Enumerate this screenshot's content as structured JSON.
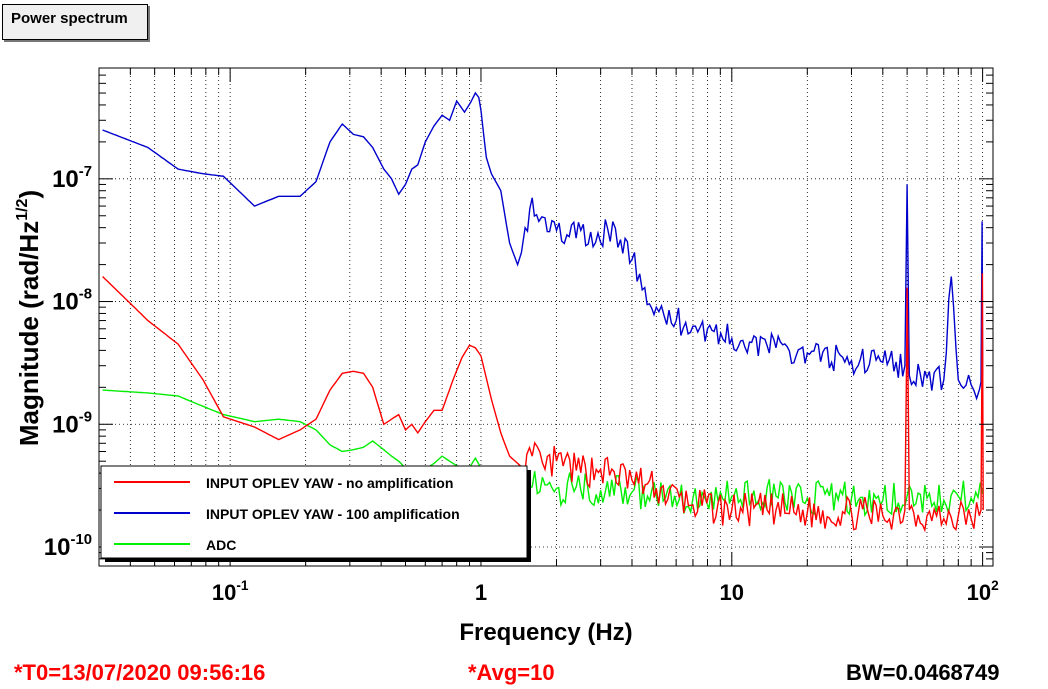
{
  "canvas_title": "Power spectrum",
  "footer": {
    "t0": "*T0=13/07/2020 09:56:16",
    "avg": "*Avg=10",
    "bw": "BW=0.0468749"
  },
  "colors": {
    "no_amp": "#ff0000",
    "amp100": "#0000cc",
    "adc": "#00ee00",
    "t0_text": "#ff0000",
    "avg_text": "#ff0000",
    "bw_text": "#000000"
  },
  "chart_data": {
    "type": "line",
    "title": "Power spectrum",
    "xlabel": "Frequency (Hz)",
    "ylabel": "Magnitude (rad/Hz^1/2)",
    "x_scale": "log",
    "y_scale": "log",
    "xlim": [
      0.03,
      110
    ],
    "ylim": [
      7e-11,
      8e-07
    ],
    "grid": true,
    "legend_position": "bottom-left",
    "x_ticks": [
      {
        "value": 0.1,
        "base": "10",
        "exp": "-1"
      },
      {
        "value": 1,
        "base": "1",
        "exp": ""
      },
      {
        "value": 10,
        "base": "10",
        "exp": ""
      },
      {
        "value": 100,
        "base": "10",
        "exp": "2"
      }
    ],
    "y_ticks": [
      {
        "value": 1e-10,
        "base": "10",
        "exp": "-10"
      },
      {
        "value": 1e-09,
        "base": "10",
        "exp": "-9"
      },
      {
        "value": 1e-08,
        "base": "10",
        "exp": "-8"
      },
      {
        "value": 1e-07,
        "base": "10",
        "exp": "-7"
      }
    ],
    "series": [
      {
        "name": "INPUT OPLEV YAW - no amplification",
        "color": "#ff0000",
        "x": [
          0.031,
          0.047,
          0.062,
          0.078,
          0.094,
          0.125,
          0.156,
          0.19,
          0.22,
          0.25,
          0.28,
          0.31,
          0.34,
          0.37,
          0.41,
          0.44,
          0.47,
          0.5,
          0.53,
          0.56,
          0.6,
          0.65,
          0.7,
          0.78,
          0.84,
          0.9,
          0.95,
          1.0,
          1.1,
          1.2,
          1.3,
          1.45,
          1.6,
          1.8,
          2.0,
          2.4,
          3.0,
          4.0,
          5.0,
          7.0,
          10.0,
          15.0,
          20.0,
          30.0,
          40.0,
          49.0,
          49.8,
          50.0,
          50.3,
          51.0,
          60.0,
          70.0,
          80.0,
          90.0,
          97.0,
          98.5,
          99.5,
          99.8,
          100.0,
          100.5
        ],
        "values": [
          1.6e-08,
          7e-09,
          4.5e-09,
          2.3e-09,
          1.15e-09,
          9.5e-10,
          7.5e-10,
          9e-10,
          1.1e-09,
          1.9e-09,
          2.6e-09,
          2.7e-09,
          2.6e-09,
          2e-09,
          1e-09,
          1.1e-09,
          1.2e-09,
          9e-10,
          1e-09,
          8.5e-10,
          1.05e-09,
          1.3e-09,
          1.3e-09,
          2.4e-09,
          3.5e-09,
          4.4e-09,
          4.2e-09,
          3.6e-09,
          1.6e-09,
          8.5e-10,
          5.5e-10,
          4.5e-10,
          5.5e-10,
          4.3e-10,
          5e-10,
          4.2e-10,
          4.3e-10,
          3.5e-10,
          3e-10,
          2.2e-10,
          2e-10,
          2e-10,
          1.9e-10,
          1.9e-10,
          1.8e-10,
          2e-10,
          4e-09,
          1.3e-08,
          4e-09,
          2e-10,
          1.8e-10,
          1.7e-10,
          1.8e-10,
          1.7e-10,
          1.8e-10,
          2e-10,
          5e-09,
          1.7e-08,
          5e-09,
          2e-10
        ]
      },
      {
        "name": "INPUT OPLEV YAW - 100 amplification",
        "color": "#0000cc",
        "x": [
          0.031,
          0.047,
          0.062,
          0.078,
          0.094,
          0.125,
          0.156,
          0.19,
          0.22,
          0.25,
          0.28,
          0.31,
          0.34,
          0.37,
          0.41,
          0.44,
          0.47,
          0.5,
          0.53,
          0.56,
          0.6,
          0.65,
          0.7,
          0.75,
          0.8,
          0.86,
          0.91,
          0.95,
          0.98,
          1.0,
          1.05,
          1.1,
          1.2,
          1.3,
          1.4,
          1.45,
          1.5,
          1.6,
          1.7,
          1.8,
          2.0,
          2.2,
          2.5,
          2.8,
          3.2,
          3.6,
          4.0,
          4.5,
          5.0,
          5.5,
          6.0,
          7.0,
          8.0,
          10.0,
          15.0,
          20.0,
          30.0,
          40.0,
          49.0,
          50.0,
          51.0,
          60.0,
          70.0,
          75.0,
          80.0,
          90.0,
          97.0,
          98.5,
          99.5,
          100.0
        ],
        "values": [
          2.5e-07,
          1.8e-07,
          1.2e-07,
          1.1e-07,
          1.05e-07,
          6e-08,
          7.2e-08,
          7.2e-08,
          9.5e-08,
          2e-07,
          2.8e-07,
          2.3e-07,
          2.2e-07,
          1.8e-07,
          1.2e-07,
          1e-07,
          7.5e-08,
          9e-08,
          1.2e-07,
          1.3e-07,
          2e-07,
          2.7e-07,
          3.3e-07,
          3e-07,
          4.3e-07,
          3.5e-07,
          4.2e-07,
          5e-07,
          4.6e-07,
          3.6e-07,
          1.5e-07,
          1.1e-07,
          8e-08,
          3e-08,
          2e-08,
          2.5e-08,
          4e-08,
          7e-08,
          4.5e-08,
          4.8e-08,
          3.8e-08,
          3.5e-08,
          3.8e-08,
          2.8e-08,
          3.9e-08,
          3.2e-08,
          2.2e-08,
          1.3e-08,
          9e-09,
          6.5e-09,
          7e-09,
          6.3e-09,
          6e-09,
          5e-09,
          4.2e-09,
          3.8e-09,
          3.3e-09,
          3.2e-09,
          3e-09,
          9e-08,
          2.5e-09,
          2.4e-09,
          2.3e-09,
          1.6e-08,
          2.3e-09,
          2.1e-09,
          1.9e-09,
          2.2e-09,
          4.5e-08,
          2.5e-09
        ]
      },
      {
        "name": "ADC",
        "color": "#00ee00",
        "x": [
          0.031,
          0.047,
          0.062,
          0.078,
          0.094,
          0.125,
          0.156,
          0.19,
          0.22,
          0.25,
          0.28,
          0.31,
          0.34,
          0.37,
          0.41,
          0.44,
          0.47,
          0.5,
          0.53,
          0.56,
          0.6,
          0.65,
          0.7,
          0.75,
          0.8,
          0.86,
          0.91,
          0.95,
          1.0,
          1.1,
          1.2,
          1.3,
          1.45,
          1.6,
          1.8,
          2.0,
          2.4,
          3.0,
          4.0,
          5.0,
          7.0,
          10.0,
          15.0,
          20.0,
          30.0,
          40.0,
          50.0,
          60.0,
          70.0,
          80.0,
          90.0,
          100.0
        ],
        "values": [
          1.9e-09,
          1.8e-09,
          1.7e-09,
          1.4e-09,
          1.2e-09,
          1.05e-09,
          1.1e-09,
          1.05e-09,
          9e-10,
          6.8e-10,
          6e-10,
          6.2e-10,
          6.5e-10,
          7.3e-10,
          6.2e-10,
          5.5e-10,
          5e-10,
          4.4e-10,
          4.2e-10,
          4e-10,
          4.3e-10,
          4.8e-10,
          5.5e-10,
          5e-10,
          4.6e-10,
          4.4e-10,
          4.6e-10,
          5.3e-10,
          4.4e-10,
          3.8e-10,
          3.6e-10,
          3.5e-10,
          3.6e-10,
          3.1e-10,
          3.2e-10,
          3e-10,
          3.1e-10,
          2.9e-10,
          2.8e-10,
          2.6e-10,
          2.5e-10,
          2.6e-10,
          2.6e-10,
          2.5e-10,
          2.5e-10,
          2.4e-10,
          2.6e-10,
          2.5e-10,
          2.4e-10,
          2.6e-10,
          2.5e-10,
          2.7e-10
        ]
      }
    ]
  }
}
